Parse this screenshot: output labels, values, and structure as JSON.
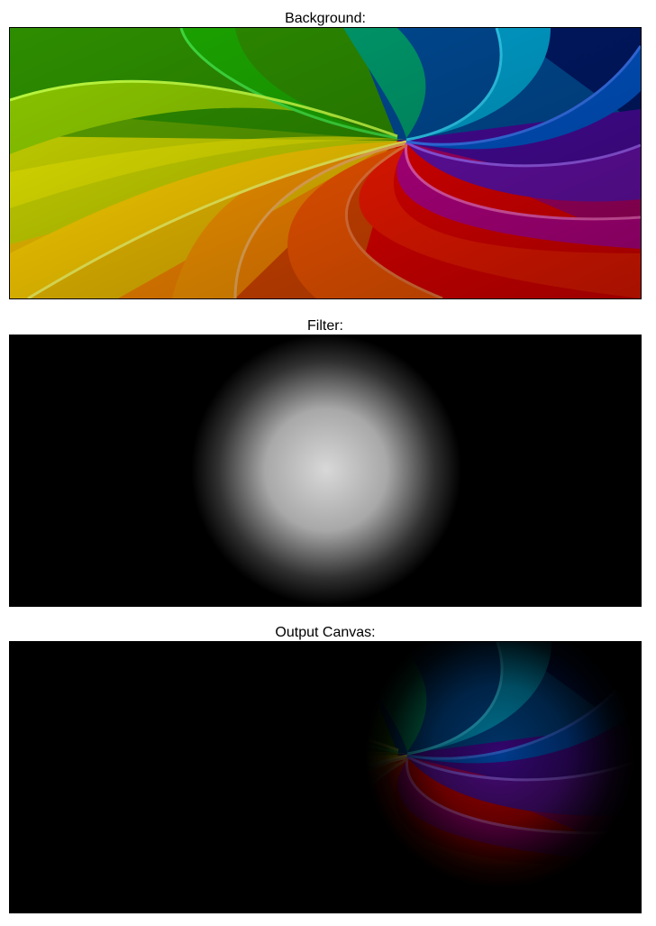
{
  "sections": {
    "background": {
      "caption": "Background:"
    },
    "filter": {
      "caption": "Filter:"
    },
    "output": {
      "caption": "Output Canvas:"
    }
  },
  "colors": {
    "page_bg": "#ffffff",
    "panel_bg": "#000000",
    "rainbow": [
      "#ff0000",
      "#ff6a00",
      "#ffb000",
      "#ffe800",
      "#7ec800",
      "#1ca800",
      "#00a070",
      "#00a8d8",
      "#0058d0",
      "#1a1aa0",
      "#6a10b0",
      "#c0008a",
      "#e00040"
    ],
    "filter_center": "#d8d8d8"
  }
}
